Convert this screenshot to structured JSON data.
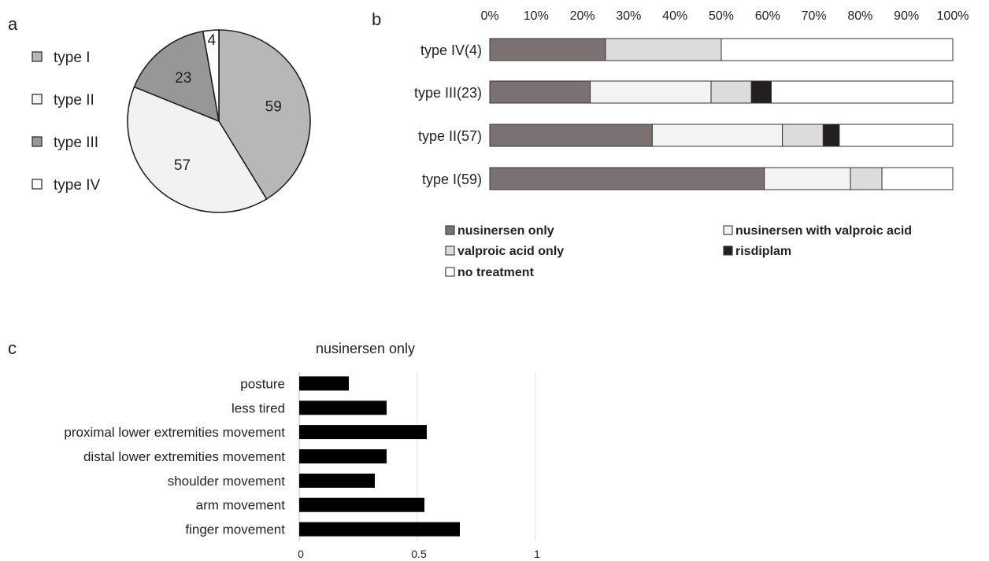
{
  "panels": {
    "a": "a",
    "b": "b",
    "c": "c"
  },
  "colors": {
    "type_I": "#b7b7b7",
    "type_II": "#f2f2f2",
    "type_III": "#979699",
    "type_IV": "#ffffff",
    "nusinersen_only": "#7b7172",
    "nusinersen_with_valproic_acid": "#f3f3f4",
    "valproic_acid_only": "#dcdcdd",
    "risdiplam": "#231f20",
    "no_treatment": "#ffffff",
    "c_bar": "#000000"
  },
  "chart_data": [
    {
      "id": "a",
      "type": "pie",
      "labels": [
        "type I",
        "type II",
        "type III",
        "type IV"
      ],
      "values": [
        59,
        57,
        23,
        4
      ],
      "legend_position": "left"
    },
    {
      "id": "b",
      "type": "bar",
      "orientation": "horizontal",
      "stacked": true,
      "percent": true,
      "categories": [
        "type IV(4)",
        "type III(23)",
        "type II(57)",
        "type I(59)"
      ],
      "series": [
        {
          "name": "nusinersen only",
          "values": [
            25,
            21.7,
            35.1,
            59.3
          ]
        },
        {
          "name": "nusinersen with valproic acid",
          "values": [
            0,
            26.1,
            28.1,
            18.6
          ]
        },
        {
          "name": "valproic acid only",
          "values": [
            25,
            8.7,
            8.8,
            6.8
          ]
        },
        {
          "name": "risdiplam",
          "values": [
            0,
            4.3,
            3.5,
            0
          ]
        },
        {
          "name": "no treatment",
          "values": [
            50,
            39.2,
            24.5,
            15.3
          ]
        }
      ],
      "x_ticks": [
        "0%",
        "10%",
        "20%",
        "30%",
        "40%",
        "50%",
        "60%",
        "70%",
        "80%",
        "90%",
        "100%"
      ],
      "xlim": [
        0,
        100
      ],
      "x_axis_position": "top",
      "legend_position": "bottom"
    },
    {
      "id": "c",
      "type": "bar",
      "orientation": "horizontal",
      "title": "nusinersen only",
      "categories": [
        "posture",
        "less tired",
        "proximal lower extremities movement",
        "distal lower extremities movement",
        "shoulder movement",
        "arm movement",
        "finger movement"
      ],
      "values": [
        0.21,
        0.37,
        0.54,
        0.37,
        0.32,
        0.53,
        0.68
      ],
      "x_ticks": [
        "0",
        "0.5",
        "1"
      ],
      "xlim": [
        0,
        1
      ],
      "grid": true
    }
  ]
}
